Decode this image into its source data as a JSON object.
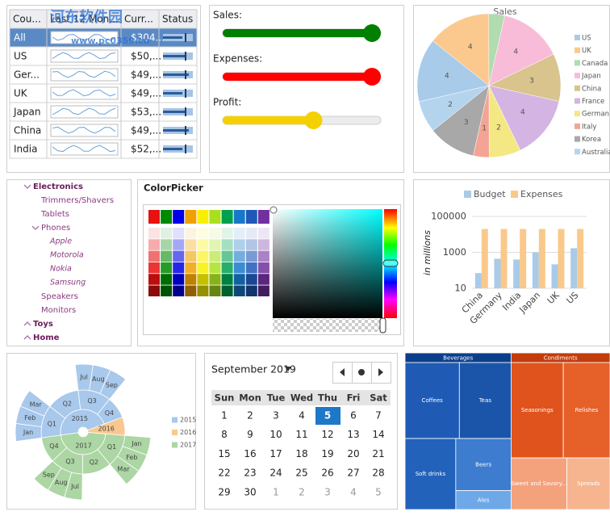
{
  "watermark": {
    "title": "河东软件园",
    "url": "www.pc0359.cn"
  },
  "table": {
    "columns": [
      "Cou...",
      "Last 12 Mon...",
      "Curr...",
      "Status"
    ],
    "rows": [
      [
        "All",
        "$304..."
      ],
      [
        "US",
        "$50,..."
      ],
      [
        "Ger...",
        "$49,..."
      ],
      [
        "UK",
        "$49,..."
      ],
      [
        "Japan",
        "$53,..."
      ],
      [
        "China",
        "$49,..."
      ],
      [
        "India",
        "$52,..."
      ]
    ]
  },
  "sliders": {
    "min": 0,
    "max": 100,
    "items": [
      {
        "label": "Sales:",
        "value": 100,
        "color": "#008000"
      },
      {
        "label": "Expenses:",
        "value": 100,
        "color": "#ff0000"
      },
      {
        "label": "Profit:",
        "value": 59,
        "color": "#f5d000"
      }
    ]
  },
  "tree": {
    "nodes": [
      {
        "label": "Electronics",
        "expanded": true,
        "children": [
          {
            "label": "Trimmers/Shavers"
          },
          {
            "label": "Tablets"
          },
          {
            "label": "Phones",
            "expanded": true,
            "children": [
              {
                "label": "Apple"
              },
              {
                "label": "Motorola"
              },
              {
                "label": "Nokia"
              },
              {
                "label": "Samsung"
              }
            ]
          },
          {
            "label": "Speakers"
          },
          {
            "label": "Monitors"
          }
        ]
      },
      {
        "label": "Toys",
        "expanded": false
      },
      {
        "label": "Home",
        "expanded": false
      }
    ]
  },
  "color_picker": {
    "title": "ColorPicker"
  },
  "calendar": {
    "title": "September 2019",
    "weekdays": [
      "Sun",
      "Mon",
      "Tue",
      "Wed",
      "Thu",
      "Fri",
      "Sat"
    ],
    "weeks": [
      [
        1,
        2,
        3,
        4,
        5,
        6,
        7
      ],
      [
        8,
        9,
        10,
        11,
        12,
        13,
        14
      ],
      [
        15,
        16,
        17,
        18,
        19,
        20,
        21
      ],
      [
        22,
        23,
        24,
        25,
        26,
        27,
        28
      ],
      [
        29,
        30
      ]
    ],
    "next_month_days": [
      1,
      2,
      3,
      4,
      5
    ],
    "selected": 5
  },
  "chart_data": [
    {
      "type": "pie",
      "title": "Sales",
      "categories": [
        "US",
        "UK",
        "Canada",
        "Japan",
        "China",
        "France",
        "German",
        "Italy",
        "Korea",
        "Australia"
      ],
      "values": [
        4,
        4,
        1,
        4,
        3,
        4,
        2,
        1,
        3,
        2
      ],
      "value_labels": [
        "4",
        "4",
        null,
        "4",
        "3",
        "4",
        "2",
        "1",
        "3",
        "2"
      ],
      "colors": [
        "#a9cbea",
        "#fbc98e",
        "#b0dcb0",
        "#f8bcd8",
        "#d8c48c",
        "#d4b4e2",
        "#f4e884",
        "#f4a494",
        "#a8a8a8",
        "#b4d4ee"
      ]
    },
    {
      "type": "bar",
      "y_label": "in millions",
      "log_scale": true,
      "grid": true,
      "categories": [
        "China",
        "Germany",
        "India",
        "Japan",
        "UK",
        "US"
      ],
      "series": [
        {
          "name": "Budget",
          "color": "#a9cbe8",
          "values": [
            70,
            440,
            400,
            1000,
            215,
            1700
          ]
        },
        {
          "name": "Expenses",
          "color": "#f9c98b",
          "values": [
            20000,
            20000,
            20000,
            20000,
            20000,
            20000
          ]
        }
      ],
      "ylim": [
        10,
        100000
      ],
      "yticks": [
        10,
        1000,
        100000
      ]
    },
    {
      "type": "sunburst",
      "series": [
        {
          "name": "2015",
          "color": "#a8c8ec",
          "children": [
            {
              "name": "Q1",
              "children": [
                {
                  "name": "Jan",
                  "value": 3
                },
                {
                  "name": "Feb",
                  "value": 3
                },
                {
                  "name": "Mar",
                  "value": 3
                }
              ]
            },
            {
              "name": "Q2",
              "value": 9
            },
            {
              "name": "Q3",
              "children": [
                {
                  "name": "Jul",
                  "value": 3
                },
                {
                  "name": "Aug",
                  "value": 3
                },
                {
                  "name": "Sep",
                  "value": 3
                }
              ]
            },
            {
              "name": "Q4",
              "value": 6
            }
          ]
        },
        {
          "name": "2016",
          "color": "#f9c78f",
          "value": 5
        },
        {
          "name": "2017",
          "color": "#acd6a4",
          "children": [
            {
              "name": "Q1",
              "children": [
                {
                  "name": "Jan",
                  "value": 3
                },
                {
                  "name": "Feb",
                  "value": 3
                },
                {
                  "name": "Mar",
                  "value": 3
                }
              ]
            },
            {
              "name": "Q2",
              "value": 8
            },
            {
              "name": "Q3",
              "children": [
                {
                  "name": "Jul",
                  "value": 3
                },
                {
                  "name": "Aug",
                  "value": 3
                },
                {
                  "name": "Sep",
                  "value": 3
                }
              ]
            },
            {
              "name": "Q4",
              "value": 7
            }
          ]
        }
      ]
    },
    {
      "type": "treemap",
      "series": [
        {
          "name": "Beverages",
          "color": "#0b3f8c",
          "children": [
            {
              "name": "Coffees",
              "value": 63,
              "color": "#1f5bb5"
            },
            {
              "name": "Teas",
              "value": 60,
              "color": "#1a55aa"
            },
            {
              "name": "Soft drinks",
              "value": 55,
              "color": "#2362bb"
            },
            {
              "name": "Beers",
              "value": 44,
              "color": "#3d7ccf"
            },
            {
              "name": "Ales",
              "value": 16,
              "color": "#6fa8e8"
            }
          ]
        },
        {
          "name": "Condiments",
          "color": "#c33c0c",
          "children": [
            {
              "name": "Seasonings",
              "value": 76,
              "color": "#e0531c"
            },
            {
              "name": "Relishes",
              "value": 68,
              "color": "#e6602a"
            },
            {
              "name": "Sweet and Savory...",
              "value": 44,
              "color": "#f4a27c"
            },
            {
              "name": "Spreads",
              "value": 34,
              "color": "#f6b48f"
            }
          ]
        }
      ]
    }
  ]
}
